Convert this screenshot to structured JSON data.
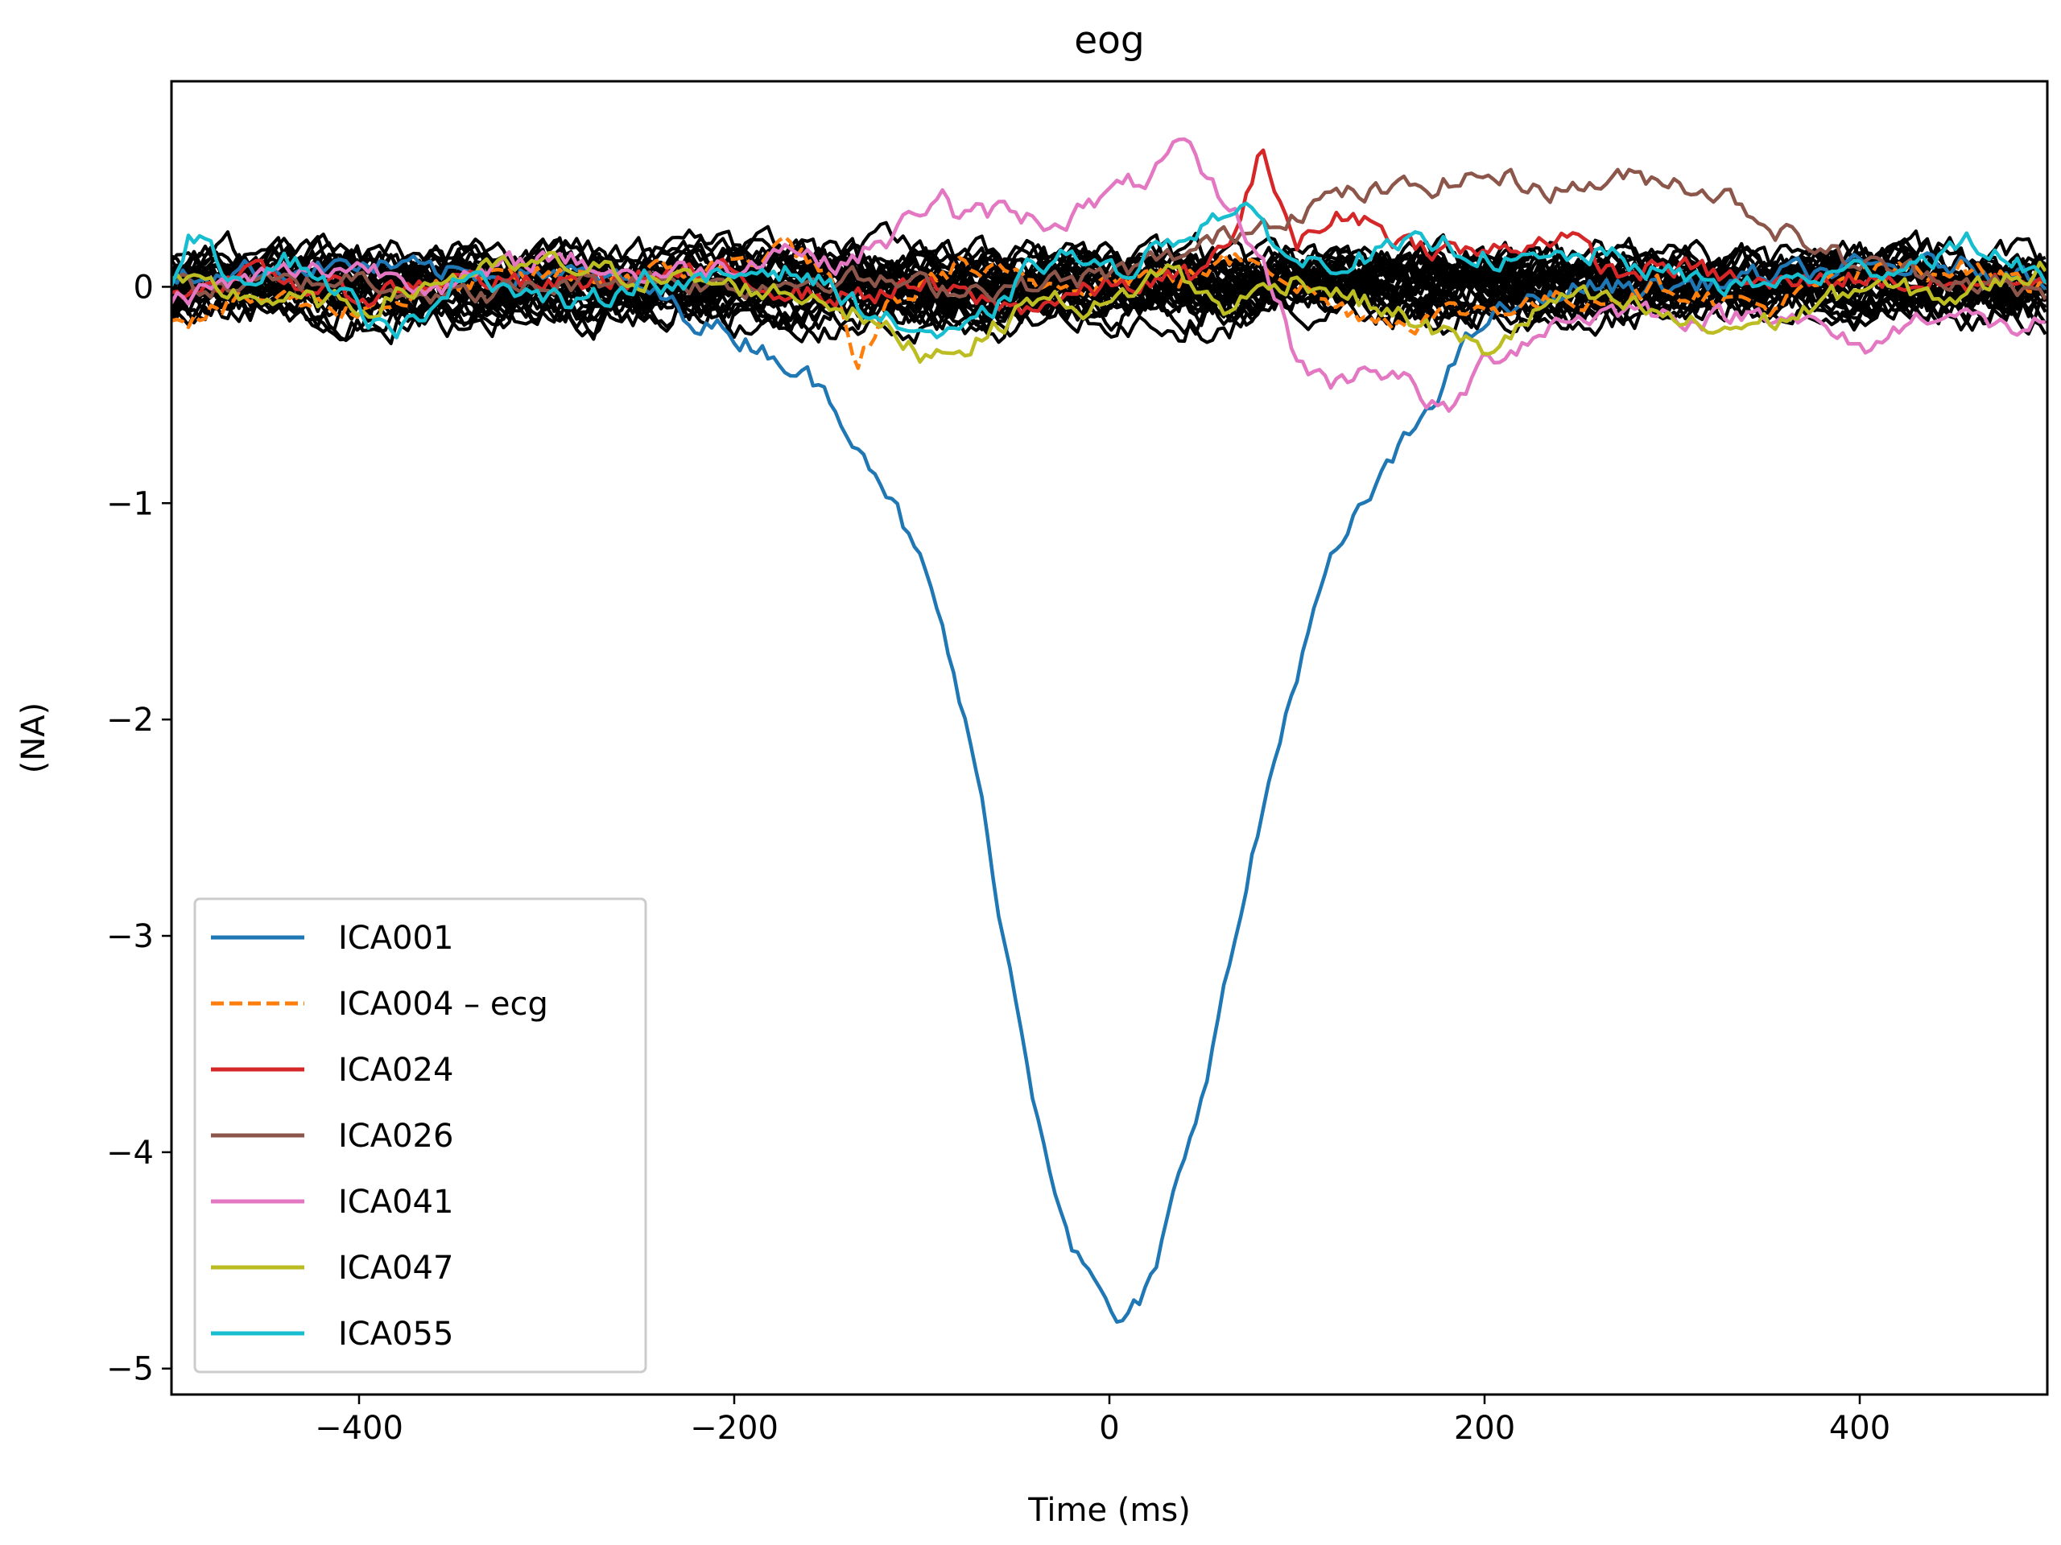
{
  "chart_data": {
    "type": "line",
    "title": "eog",
    "xlabel": "Time (ms)",
    "ylabel": "(NA)",
    "xlim": [
      -500,
      500
    ],
    "ylim": [
      -5.12,
      0.95
    ],
    "x_ticks": [
      -400,
      -200,
      0,
      200,
      400
    ],
    "x_tick_labels": [
      "−400",
      "−200",
      "0",
      "200",
      "400"
    ],
    "y_ticks": [
      0,
      -1,
      -2,
      -3,
      -4,
      -5
    ],
    "y_tick_labels": [
      "0",
      "−1",
      "−2",
      "−3",
      "−4",
      "−5"
    ],
    "grid": false,
    "legend_position": "lower-left",
    "background_components": {
      "count": 30,
      "color": "#000000",
      "value_range": [
        -0.55,
        0.65
      ]
    },
    "series": [
      {
        "name": "ICA001",
        "color": "#1f77b4",
        "dash": "solid",
        "points": [
          [
            -500,
            0.05
          ],
          [
            -450,
            0.08
          ],
          [
            -400,
            0.1
          ],
          [
            -350,
            0.06
          ],
          [
            -300,
            0.08
          ],
          [
            -250,
            0.0
          ],
          [
            -220,
            -0.15
          ],
          [
            -200,
            -0.22
          ],
          [
            -180,
            -0.3
          ],
          [
            -160,
            -0.42
          ],
          [
            -140,
            -0.62
          ],
          [
            -120,
            -0.9
          ],
          [
            -110,
            -1.1
          ],
          [
            -100,
            -1.3
          ],
          [
            -90,
            -1.55
          ],
          [
            -80,
            -1.9
          ],
          [
            -70,
            -2.3
          ],
          [
            -60,
            -2.8
          ],
          [
            -50,
            -3.3
          ],
          [
            -40,
            -3.75
          ],
          [
            -30,
            -4.1
          ],
          [
            -20,
            -4.4
          ],
          [
            -10,
            -4.6
          ],
          [
            0,
            -4.72
          ],
          [
            8,
            -4.82
          ],
          [
            15,
            -4.72
          ],
          [
            25,
            -4.55
          ],
          [
            35,
            -4.2
          ],
          [
            45,
            -3.85
          ],
          [
            55,
            -3.5
          ],
          [
            65,
            -3.1
          ],
          [
            75,
            -2.7
          ],
          [
            85,
            -2.3
          ],
          [
            95,
            -1.95
          ],
          [
            105,
            -1.6
          ],
          [
            120,
            -1.25
          ],
          [
            140,
            -0.95
          ],
          [
            160,
            -0.7
          ],
          [
            180,
            -0.4
          ],
          [
            200,
            -0.15
          ],
          [
            250,
            0.0
          ],
          [
            300,
            0.0
          ],
          [
            350,
            0.05
          ],
          [
            400,
            0.08
          ],
          [
            450,
            0.1
          ],
          [
            500,
            0.05
          ]
        ]
      },
      {
        "name": "ICA004 – ecg",
        "color": "#ff7f0e",
        "dash": "dashed",
        "points": [
          [
            -500,
            -0.15
          ],
          [
            -450,
            -0.05
          ],
          [
            -400,
            -0.1
          ],
          [
            -350,
            0.0
          ],
          [
            -300,
            0.05
          ],
          [
            -250,
            0.05
          ],
          [
            -200,
            0.1
          ],
          [
            -170,
            0.2
          ],
          [
            -150,
            0.05
          ],
          [
            -135,
            -0.42
          ],
          [
            -120,
            -0.1
          ],
          [
            -80,
            0.1
          ],
          [
            -40,
            0.0
          ],
          [
            0,
            0.05
          ],
          [
            40,
            0.05
          ],
          [
            80,
            0.15
          ],
          [
            120,
            -0.1
          ],
          [
            160,
            -0.15
          ],
          [
            200,
            -0.1
          ],
          [
            250,
            -0.05
          ],
          [
            300,
            0.0
          ],
          [
            350,
            -0.1
          ],
          [
            400,
            0.05
          ],
          [
            450,
            0.1
          ],
          [
            500,
            0.0
          ]
        ]
      },
      {
        "name": "ICA024",
        "color": "#d62728",
        "dash": "solid",
        "points": [
          [
            -500,
            0.0
          ],
          [
            -450,
            0.05
          ],
          [
            -400,
            -0.05
          ],
          [
            -350,
            0.05
          ],
          [
            -300,
            0.0
          ],
          [
            -250,
            0.05
          ],
          [
            -200,
            0.05
          ],
          [
            -150,
            -0.05
          ],
          [
            -100,
            0.0
          ],
          [
            -50,
            -0.1
          ],
          [
            0,
            0.0
          ],
          [
            50,
            0.05
          ],
          [
            70,
            0.3
          ],
          [
            80,
            0.6
          ],
          [
            90,
            0.45
          ],
          [
            100,
            0.2
          ],
          [
            130,
            0.35
          ],
          [
            160,
            0.2
          ],
          [
            200,
            0.15
          ],
          [
            240,
            0.25
          ],
          [
            270,
            0.05
          ],
          [
            300,
            0.1
          ],
          [
            350,
            0.0
          ],
          [
            400,
            0.05
          ],
          [
            450,
            0.0
          ],
          [
            500,
            0.05
          ]
        ]
      },
      {
        "name": "ICA026",
        "color": "#8c564b",
        "dash": "solid",
        "points": [
          [
            -500,
            0.0
          ],
          [
            -450,
            0.0
          ],
          [
            -400,
            0.05
          ],
          [
            -350,
            -0.05
          ],
          [
            -300,
            0.0
          ],
          [
            -250,
            0.05
          ],
          [
            -200,
            0.0
          ],
          [
            -150,
            0.05
          ],
          [
            -100,
            0.0
          ],
          [
            -50,
            0.0
          ],
          [
            0,
            0.05
          ],
          [
            40,
            0.15
          ],
          [
            80,
            0.3
          ],
          [
            120,
            0.42
          ],
          [
            160,
            0.45
          ],
          [
            200,
            0.52
          ],
          [
            240,
            0.45
          ],
          [
            270,
            0.5
          ],
          [
            300,
            0.5
          ],
          [
            330,
            0.42
          ],
          [
            360,
            0.25
          ],
          [
            400,
            0.1
          ],
          [
            450,
            0.05
          ],
          [
            500,
            -0.05
          ]
        ]
      },
      {
        "name": "ICA041",
        "color": "#e377c2",
        "dash": "solid",
        "points": [
          [
            -500,
            -0.05
          ],
          [
            -450,
            0.05
          ],
          [
            -400,
            0.1
          ],
          [
            -350,
            0.0
          ],
          [
            -300,
            0.15
          ],
          [
            -250,
            0.05
          ],
          [
            -200,
            0.1
          ],
          [
            -170,
            0.2
          ],
          [
            -150,
            0.1
          ],
          [
            -120,
            0.2
          ],
          [
            -90,
            0.45
          ],
          [
            -80,
            0.3
          ],
          [
            -60,
            0.35
          ],
          [
            -30,
            0.3
          ],
          [
            0,
            0.42
          ],
          [
            20,
            0.5
          ],
          [
            40,
            0.65
          ],
          [
            50,
            0.5
          ],
          [
            70,
            0.3
          ],
          [
            90,
            -0.05
          ],
          [
            100,
            -0.35
          ],
          [
            120,
            -0.45
          ],
          [
            140,
            -0.35
          ],
          [
            160,
            -0.45
          ],
          [
            180,
            -0.6
          ],
          [
            200,
            -0.35
          ],
          [
            240,
            -0.15
          ],
          [
            280,
            -0.1
          ],
          [
            320,
            -0.15
          ],
          [
            360,
            -0.1
          ],
          [
            400,
            -0.3
          ],
          [
            440,
            -0.1
          ],
          [
            480,
            -0.2
          ],
          [
            500,
            -0.15
          ]
        ]
      },
      {
        "name": "ICA047",
        "color": "#bcbd22",
        "dash": "solid",
        "points": [
          [
            -500,
            0.0
          ],
          [
            -450,
            -0.05
          ],
          [
            -400,
            -0.1
          ],
          [
            -350,
            0.05
          ],
          [
            -300,
            0.1
          ],
          [
            -250,
            0.05
          ],
          [
            -200,
            0.0
          ],
          [
            -150,
            -0.05
          ],
          [
            -100,
            -0.3
          ],
          [
            -70,
            -0.25
          ],
          [
            -40,
            -0.05
          ],
          [
            0,
            -0.1
          ],
          [
            30,
            0.1
          ],
          [
            60,
            -0.1
          ],
          [
            100,
            0.05
          ],
          [
            130,
            -0.05
          ],
          [
            160,
            -0.15
          ],
          [
            200,
            -0.3
          ],
          [
            240,
            -0.05
          ],
          [
            280,
            -0.1
          ],
          [
            320,
            -0.2
          ],
          [
            360,
            -0.15
          ],
          [
            400,
            0.0
          ],
          [
            450,
            -0.05
          ],
          [
            500,
            0.1
          ]
        ]
      },
      {
        "name": "ICA055",
        "color": "#17becf",
        "dash": "solid",
        "points": [
          [
            -500,
            0.0
          ],
          [
            -490,
            0.28
          ],
          [
            -475,
            0.1
          ],
          [
            -460,
            0.05
          ],
          [
            -440,
            0.15
          ],
          [
            -420,
            0.05
          ],
          [
            -400,
            -0.1
          ],
          [
            -380,
            -0.25
          ],
          [
            -360,
            -0.05
          ],
          [
            -340,
            0.1
          ],
          [
            -320,
            0.0
          ],
          [
            -300,
            -0.05
          ],
          [
            -280,
            -0.1
          ],
          [
            -250,
            0.05
          ],
          [
            -220,
            0.0
          ],
          [
            -200,
            0.05
          ],
          [
            -180,
            0.1
          ],
          [
            -160,
            0.05
          ],
          [
            -140,
            -0.05
          ],
          [
            -120,
            -0.15
          ],
          [
            -100,
            -0.2
          ],
          [
            -80,
            -0.25
          ],
          [
            -60,
            -0.1
          ],
          [
            -40,
            0.1
          ],
          [
            -20,
            0.15
          ],
          [
            0,
            0.05
          ],
          [
            30,
            0.2
          ],
          [
            60,
            0.35
          ],
          [
            80,
            0.3
          ],
          [
            100,
            0.1
          ],
          [
            140,
            0.15
          ],
          [
            180,
            0.2
          ],
          [
            220,
            0.1
          ],
          [
            260,
            0.15
          ],
          [
            300,
            0.05
          ],
          [
            340,
            0.0
          ],
          [
            380,
            0.05
          ],
          [
            420,
            0.1
          ],
          [
            460,
            0.2
          ],
          [
            500,
            0.05
          ]
        ]
      }
    ]
  }
}
